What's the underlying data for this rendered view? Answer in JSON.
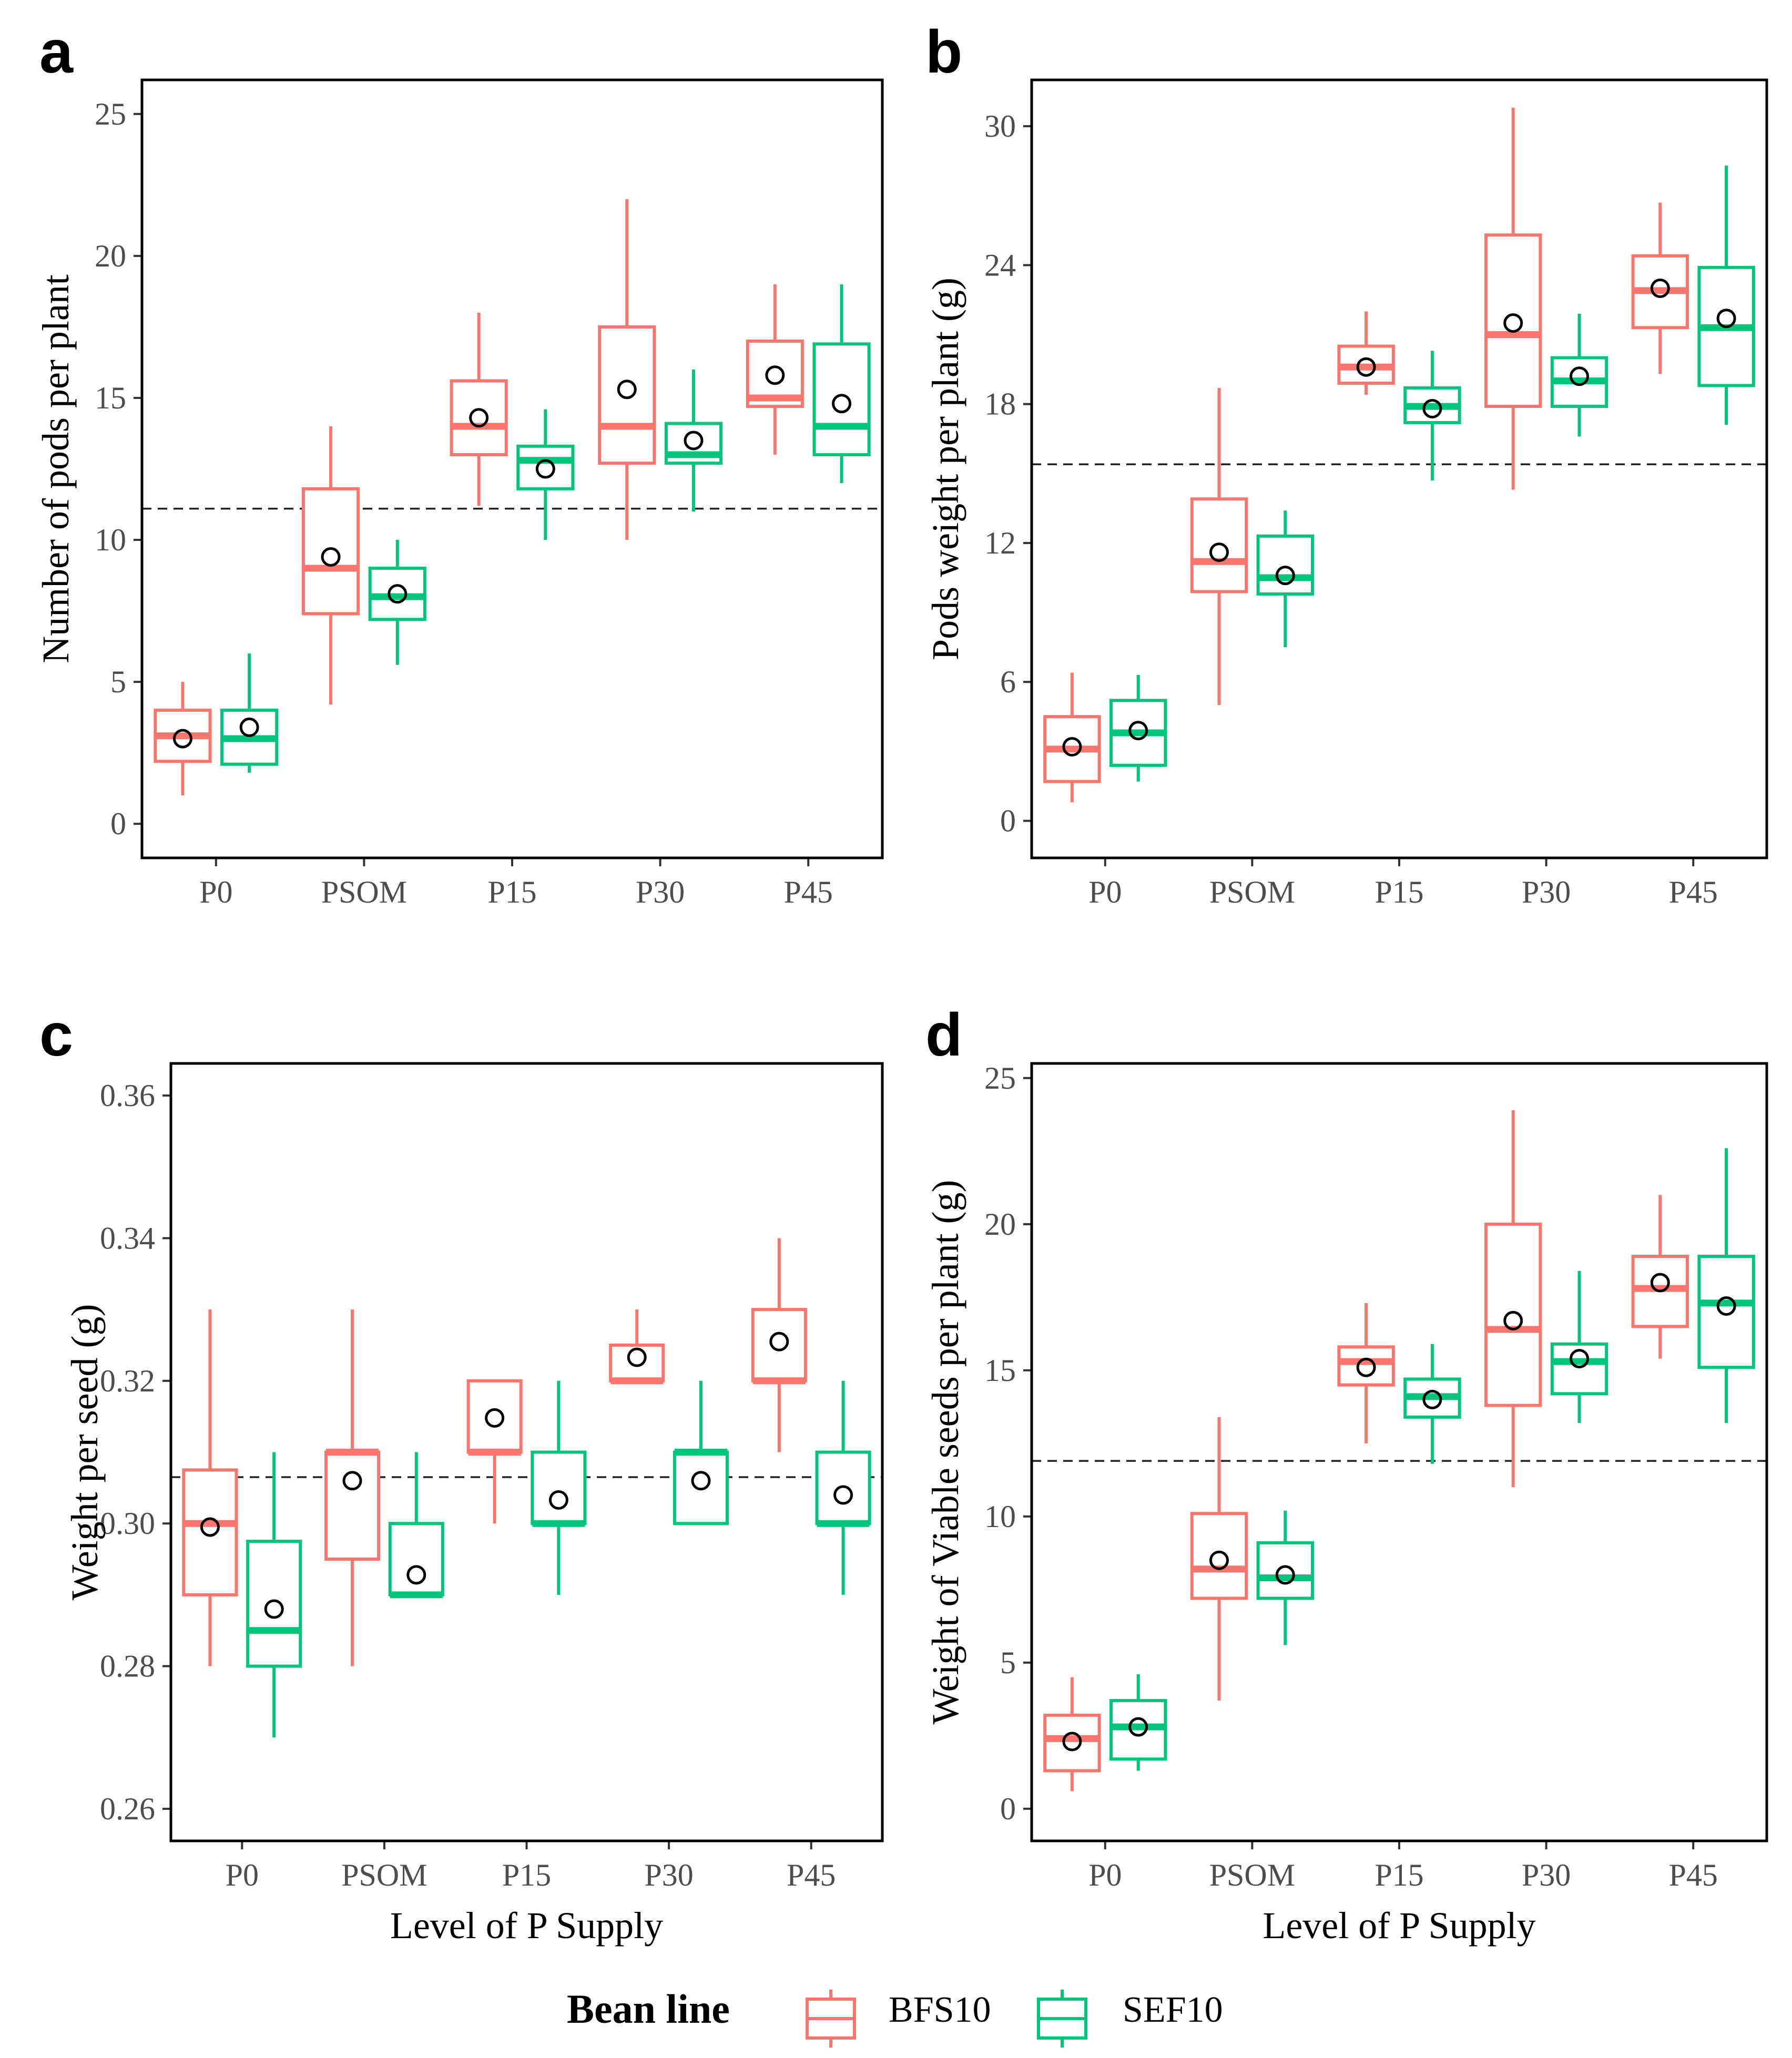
{
  "legend": {
    "title": "Bean line",
    "entries": [
      {
        "name": "BFS10",
        "color": "#f8766d"
      },
      {
        "name": "SEF10",
        "color": "#00c47a"
      }
    ]
  },
  "chart_data": [
    {
      "panel": "a",
      "type": "box",
      "title": "",
      "xlabel": "",
      "ylabel": "Number of pods per plant",
      "ylim": [
        -1.2,
        26.2
      ],
      "yticks": [
        0,
        5,
        10,
        15,
        20,
        25
      ],
      "ytick_labels": [
        "0",
        "5",
        "10",
        "15",
        "20",
        "25"
      ],
      "categories": [
        "P0",
        "PSOM",
        "P15",
        "P30",
        "P45"
      ],
      "reference_line": 11.1,
      "series": [
        {
          "name": "BFS10",
          "boxes": [
            {
              "min": 1,
              "q1": 2.2,
              "median": 3.1,
              "q3": 4.0,
              "max": 5,
              "mean": 3.0
            },
            {
              "min": 4.2,
              "q1": 7.4,
              "median": 9.0,
              "q3": 11.8,
              "max": 14,
              "mean": 9.4
            },
            {
              "min": 11.2,
              "q1": 13.0,
              "median": 14.0,
              "q3": 15.6,
              "max": 18,
              "mean": 14.3
            },
            {
              "min": 10,
              "q1": 12.7,
              "median": 14.0,
              "q3": 17.5,
              "max": 22,
              "mean": 15.3
            },
            {
              "min": 13,
              "q1": 14.7,
              "median": 15.0,
              "q3": 17.0,
              "max": 19,
              "mean": 15.8
            }
          ]
        },
        {
          "name": "SEF10",
          "boxes": [
            {
              "min": 1.8,
              "q1": 2.1,
              "median": 3.0,
              "q3": 4.0,
              "max": 6,
              "mean": 3.4
            },
            {
              "min": 5.6,
              "q1": 7.2,
              "median": 8.0,
              "q3": 9.0,
              "max": 10,
              "mean": 8.1
            },
            {
              "min": 10,
              "q1": 11.8,
              "median": 12.8,
              "q3": 13.3,
              "max": 14.6,
              "mean": 12.5
            },
            {
              "min": 11,
              "q1": 12.7,
              "median": 13.0,
              "q3": 14.1,
              "max": 16,
              "mean": 13.5
            },
            {
              "min": 12,
              "q1": 13.0,
              "median": 14.0,
              "q3": 16.9,
              "max": 19,
              "mean": 14.8
            }
          ]
        }
      ]
    },
    {
      "panel": "b",
      "type": "box",
      "title": "",
      "xlabel": "",
      "ylabel": "Pods weight per plant (g)",
      "ylim": [
        -1.6,
        32.0
      ],
      "yticks": [
        0,
        6,
        12,
        18,
        24,
        30
      ],
      "ytick_labels": [
        "0",
        "6",
        "12",
        "18",
        "24",
        "30"
      ],
      "categories": [
        "P0",
        "PSOM",
        "P15",
        "P30",
        "P45"
      ],
      "reference_line": 15.4,
      "series": [
        {
          "name": "BFS10",
          "boxes": [
            {
              "min": 0.8,
              "q1": 1.7,
              "median": 3.1,
              "q3": 4.5,
              "max": 6.4,
              "mean": 3.2
            },
            {
              "min": 5.0,
              "q1": 9.9,
              "median": 11.2,
              "q3": 13.9,
              "max": 18.7,
              "mean": 11.6
            },
            {
              "min": 18.4,
              "q1": 18.9,
              "median": 19.6,
              "q3": 20.5,
              "max": 22.0,
              "mean": 19.6
            },
            {
              "min": 14.3,
              "q1": 17.9,
              "median": 21.0,
              "q3": 25.3,
              "max": 30.8,
              "mean": 21.5
            },
            {
              "min": 19.3,
              "q1": 21.3,
              "median": 22.9,
              "q3": 24.4,
              "max": 26.7,
              "mean": 23.0
            }
          ]
        },
        {
          "name": "SEF10",
          "boxes": [
            {
              "min": 1.7,
              "q1": 2.4,
              "median": 3.8,
              "q3": 5.2,
              "max": 6.3,
              "mean": 3.9
            },
            {
              "min": 7.5,
              "q1": 9.8,
              "median": 10.5,
              "q3": 12.3,
              "max": 13.4,
              "mean": 10.6
            },
            {
              "min": 14.7,
              "q1": 17.2,
              "median": 17.9,
              "q3": 18.7,
              "max": 20.3,
              "mean": 17.8
            },
            {
              "min": 16.6,
              "q1": 17.9,
              "median": 19.0,
              "q3": 20.0,
              "max": 21.9,
              "mean": 19.2
            },
            {
              "min": 17.1,
              "q1": 18.8,
              "median": 21.3,
              "q3": 23.9,
              "max": 28.3,
              "mean": 21.7
            }
          ]
        }
      ]
    },
    {
      "panel": "c",
      "type": "box",
      "title": "",
      "xlabel": "Level of P Supply",
      "ylabel": "Weight per seed (g)",
      "ylim": [
        0.2555,
        0.3645
      ],
      "yticks": [
        0.26,
        0.28,
        0.3,
        0.32,
        0.34,
        0.36
      ],
      "ytick_labels": [
        "0.26",
        "0.28",
        "0.30",
        "0.32",
        "0.34",
        "0.36"
      ],
      "categories": [
        "P0",
        "PSOM",
        "P15",
        "P30",
        "P45"
      ],
      "reference_line": 0.3065,
      "series": [
        {
          "name": "BFS10",
          "boxes": [
            {
              "min": 0.28,
              "q1": 0.29,
              "median": 0.3,
              "q3": 0.3075,
              "max": 0.33,
              "mean": 0.2995
            },
            {
              "min": 0.28,
              "q1": 0.295,
              "median": 0.31,
              "q3": 0.31,
              "max": 0.33,
              "mean": 0.306
            },
            {
              "min": 0.3,
              "q1": 0.31,
              "median": 0.31,
              "q3": 0.32,
              "max": 0.32,
              "mean": 0.3148
            },
            {
              "min": 0.32,
              "q1": 0.32,
              "median": 0.32,
              "q3": 0.325,
              "max": 0.33,
              "mean": 0.3233
            },
            {
              "min": 0.31,
              "q1": 0.32,
              "median": 0.32,
              "q3": 0.33,
              "max": 0.34,
              "mean": 0.3255
            }
          ]
        },
        {
          "name": "SEF10",
          "boxes": [
            {
              "min": 0.27,
              "q1": 0.28,
              "median": 0.285,
              "q3": 0.2975,
              "max": 0.31,
              "mean": 0.288
            },
            {
              "min": 0.29,
              "q1": 0.29,
              "median": 0.29,
              "q3": 0.3,
              "max": 0.31,
              "mean": 0.2928
            },
            {
              "min": 0.29,
              "q1": 0.3,
              "median": 0.3,
              "q3": 0.31,
              "max": 0.32,
              "mean": 0.3033
            },
            {
              "min": 0.3,
              "q1": 0.3,
              "median": 0.31,
              "q3": 0.31,
              "max": 0.32,
              "mean": 0.306
            },
            {
              "min": 0.29,
              "q1": 0.3,
              "median": 0.3,
              "q3": 0.31,
              "max": 0.32,
              "mean": 0.304
            }
          ]
        }
      ]
    },
    {
      "panel": "d",
      "type": "box",
      "title": "",
      "xlabel": "Level of P Supply",
      "ylabel": "Weight of Viable seeds per plant (g)",
      "ylim": [
        -1.1,
        25.5
      ],
      "yticks": [
        0,
        5,
        10,
        15,
        20,
        25
      ],
      "ytick_labels": [
        "0",
        "5",
        "10",
        "15",
        "20",
        "25"
      ],
      "categories": [
        "P0",
        "PSOM",
        "P15",
        "P30",
        "P45"
      ],
      "reference_line": 11.9,
      "series": [
        {
          "name": "BFS10",
          "boxes": [
            {
              "min": 0.6,
              "q1": 1.3,
              "median": 2.4,
              "q3": 3.2,
              "max": 4.5,
              "mean": 2.3
            },
            {
              "min": 3.7,
              "q1": 7.2,
              "median": 8.2,
              "q3": 10.1,
              "max": 13.4,
              "mean": 8.5
            },
            {
              "min": 12.5,
              "q1": 14.5,
              "median": 15.3,
              "q3": 15.8,
              "max": 17.3,
              "mean": 15.1
            },
            {
              "min": 11.0,
              "q1": 13.8,
              "median": 16.4,
              "q3": 20.0,
              "max": 23.9,
              "mean": 16.7
            },
            {
              "min": 15.4,
              "q1": 16.5,
              "median": 17.8,
              "q3": 18.9,
              "max": 21.0,
              "mean": 18.0
            }
          ]
        },
        {
          "name": "SEF10",
          "boxes": [
            {
              "min": 1.3,
              "q1": 1.7,
              "median": 2.8,
              "q3": 3.7,
              "max": 4.6,
              "mean": 2.8
            },
            {
              "min": 5.6,
              "q1": 7.2,
              "median": 7.9,
              "q3": 9.1,
              "max": 10.2,
              "mean": 8.0
            },
            {
              "min": 11.8,
              "q1": 13.4,
              "median": 14.1,
              "q3": 14.7,
              "max": 15.9,
              "mean": 14.0
            },
            {
              "min": 13.2,
              "q1": 14.2,
              "median": 15.3,
              "q3": 15.9,
              "max": 18.4,
              "mean": 15.4
            },
            {
              "min": 13.2,
              "q1": 15.1,
              "median": 17.3,
              "q3": 18.9,
              "max": 22.6,
              "mean": 17.2
            }
          ]
        }
      ]
    }
  ]
}
